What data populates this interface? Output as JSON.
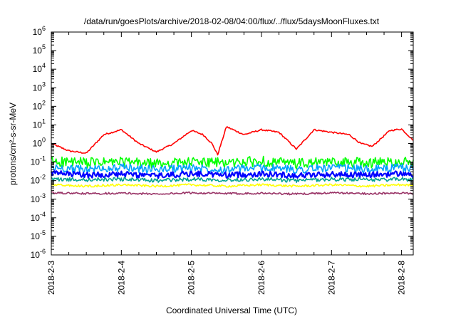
{
  "chart_data": {
    "type": "line",
    "title": "/data/run/goesPlots/archive/2018-02-08/04:00/flux/../flux/5daysMoonFluxes.txt",
    "xlabel": "Coordinated Universal Time (UTC)",
    "ylabel": "protons/cm²-s-sr-MeV",
    "y_scale": "log",
    "ylim": [
      1e-06,
      1000000.0
    ],
    "xlim": [
      "2018-02-03T00:00",
      "2018-02-08T04:00"
    ],
    "x_ticks": [
      "2018-2-3",
      "2018-2-4",
      "2018-2-5",
      "2018-2-6",
      "2018-2-7",
      "2018-2-8"
    ],
    "y_ticks": [
      {
        "value": 1e-06,
        "base": "10",
        "exp": "-6"
      },
      {
        "value": 1e-05,
        "base": "10",
        "exp": "-5"
      },
      {
        "value": 0.0001,
        "base": "10",
        "exp": "-4"
      },
      {
        "value": 0.001,
        "base": "10",
        "exp": "-3"
      },
      {
        "value": 0.01,
        "base": "10",
        "exp": "-2"
      },
      {
        "value": 0.1,
        "base": "10",
        "exp": "-1"
      },
      {
        "value": 1,
        "base": "10",
        "exp": "0"
      },
      {
        "value": 10,
        "base": "10",
        "exp": "1"
      },
      {
        "value": 100,
        "base": "10",
        "exp": "2"
      },
      {
        "value": 1000,
        "base": "10",
        "exp": "3"
      },
      {
        "value": 10000,
        "base": "10",
        "exp": "4"
      },
      {
        "value": 100000,
        "base": "10",
        "exp": "5"
      },
      {
        "value": 1000000,
        "base": "10",
        "exp": "6"
      }
    ],
    "grid": false,
    "legend": "none",
    "series": [
      {
        "color": "#ff0000",
        "x": [
          "2018-02-03T00:00",
          "2018-02-03T06:00",
          "2018-02-03T12:00",
          "2018-02-03T18:00",
          "2018-02-04T00:00",
          "2018-02-04T06:00",
          "2018-02-04T12:00",
          "2018-02-04T18:00",
          "2018-02-05T00:00",
          "2018-02-05T04:00",
          "2018-02-05T07:00",
          "2018-02-05T09:00",
          "2018-02-05T12:00",
          "2018-02-05T18:00",
          "2018-02-06T00:00",
          "2018-02-06T06:00",
          "2018-02-06T10:00",
          "2018-02-06T12:00",
          "2018-02-06T18:00",
          "2018-02-07T00:00",
          "2018-02-07T06:00",
          "2018-02-07T10:00",
          "2018-02-07T14:00",
          "2018-02-07T20:00",
          "2018-02-08T00:00",
          "2018-02-08T04:00"
        ],
        "values": [
          1.0,
          0.4,
          0.3,
          3.0,
          5.5,
          1.0,
          0.35,
          1.0,
          5.0,
          3.0,
          1.0,
          0.25,
          8.0,
          3.0,
          5.5,
          4.0,
          1.0,
          0.5,
          5.5,
          4.0,
          3.0,
          1.0,
          0.7,
          5.0,
          6.0,
          1.5
        ]
      },
      {
        "color": "#00ff00",
        "x": [
          "2018-02-03T00:00",
          "2018-02-03T12:00",
          "2018-02-04T00:00",
          "2018-02-04T12:00",
          "2018-02-05T00:00",
          "2018-02-05T12:00",
          "2018-02-06T00:00",
          "2018-02-06T12:00",
          "2018-02-07T00:00",
          "2018-02-07T12:00",
          "2018-02-08T00:00",
          "2018-02-08T04:00"
        ],
        "values": [
          0.11,
          0.09,
          0.1,
          0.08,
          0.1,
          0.09,
          0.11,
          0.08,
          0.1,
          0.09,
          0.11,
          0.1
        ]
      },
      {
        "color": "#00a0ff",
        "x": [
          "2018-02-03T00:00",
          "2018-02-03T12:00",
          "2018-02-04T00:00",
          "2018-02-04T12:00",
          "2018-02-05T00:00",
          "2018-02-05T12:00",
          "2018-02-06T00:00",
          "2018-02-06T12:00",
          "2018-02-07T00:00",
          "2018-02-07T12:00",
          "2018-02-08T00:00",
          "2018-02-08T04:00"
        ],
        "values": [
          0.05,
          0.04,
          0.05,
          0.04,
          0.05,
          0.04,
          0.05,
          0.04,
          0.05,
          0.04,
          0.05,
          0.045
        ]
      },
      {
        "color": "#0000ff",
        "x": [
          "2018-02-03T00:00",
          "2018-02-03T12:00",
          "2018-02-04T00:00",
          "2018-02-04T12:00",
          "2018-02-05T00:00",
          "2018-02-05T12:00",
          "2018-02-06T00:00",
          "2018-02-06T12:00",
          "2018-02-07T00:00",
          "2018-02-07T12:00",
          "2018-02-08T00:00",
          "2018-02-08T04:00"
        ],
        "values": [
          0.025,
          0.02,
          0.022,
          0.018,
          0.024,
          0.02,
          0.023,
          0.019,
          0.022,
          0.02,
          0.024,
          0.021
        ]
      },
      {
        "color": "#00a090",
        "x": [
          "2018-02-03T00:00",
          "2018-02-03T12:00",
          "2018-02-04T00:00",
          "2018-02-04T12:00",
          "2018-02-05T00:00",
          "2018-02-05T12:00",
          "2018-02-06T00:00",
          "2018-02-06T12:00",
          "2018-02-07T00:00",
          "2018-02-07T12:00",
          "2018-02-08T00:00",
          "2018-02-08T04:00"
        ],
        "values": [
          0.012,
          0.011,
          0.012,
          0.01,
          0.012,
          0.011,
          0.012,
          0.01,
          0.012,
          0.011,
          0.012,
          0.011
        ]
      },
      {
        "color": "#ffff00",
        "x": [
          "2018-02-03T00:00",
          "2018-02-03T12:00",
          "2018-02-04T00:00",
          "2018-02-04T12:00",
          "2018-02-05T00:00",
          "2018-02-05T12:00",
          "2018-02-06T00:00",
          "2018-02-06T12:00",
          "2018-02-07T00:00",
          "2018-02-07T12:00",
          "2018-02-08T00:00",
          "2018-02-08T04:00"
        ],
        "values": [
          0.006,
          0.005,
          0.006,
          0.005,
          0.006,
          0.005,
          0.006,
          0.005,
          0.006,
          0.005,
          0.006,
          0.0055
        ]
      },
      {
        "color": "#993366",
        "x": [
          "2018-02-03T00:00",
          "2018-02-03T12:00",
          "2018-02-04T00:00",
          "2018-02-04T12:00",
          "2018-02-05T00:00",
          "2018-02-05T12:00",
          "2018-02-06T00:00",
          "2018-02-06T12:00",
          "2018-02-07T00:00",
          "2018-02-07T12:00",
          "2018-02-08T00:00",
          "2018-02-08T04:00"
        ],
        "values": [
          0.0022,
          0.002,
          0.0021,
          0.0019,
          0.0022,
          0.002,
          0.0021,
          0.0019,
          0.0022,
          0.002,
          0.0021,
          0.002
        ]
      }
    ]
  }
}
